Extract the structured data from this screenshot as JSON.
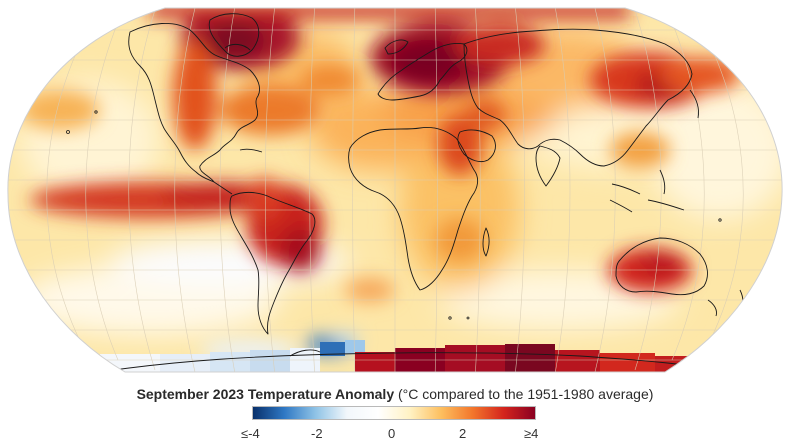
{
  "legend": {
    "title_bold": "September 2023 Temperature Anomaly",
    "title_rest": " (°C compared to the 1951-1980 average)",
    "ticks": [
      "≤-4",
      "-2",
      "0",
      "2",
      "≥4"
    ],
    "colors": [
      "#08306b",
      "#2f78c4",
      "#8fc3e6",
      "#f2f7fb",
      "#ffffff",
      "#fff2c4",
      "#fdbf5f",
      "#f3772c",
      "#d4251d",
      "#8a0021"
    ]
  },
  "map": {
    "projection": "Robinson",
    "variable": "surface temperature anomaly",
    "units": "°C",
    "baseline": "1951-1980",
    "period": "September 2023",
    "coastline_color": "#111111",
    "graticule_color": "#c9c9c9",
    "ocean_base_color": "#fde7a8"
  }
}
